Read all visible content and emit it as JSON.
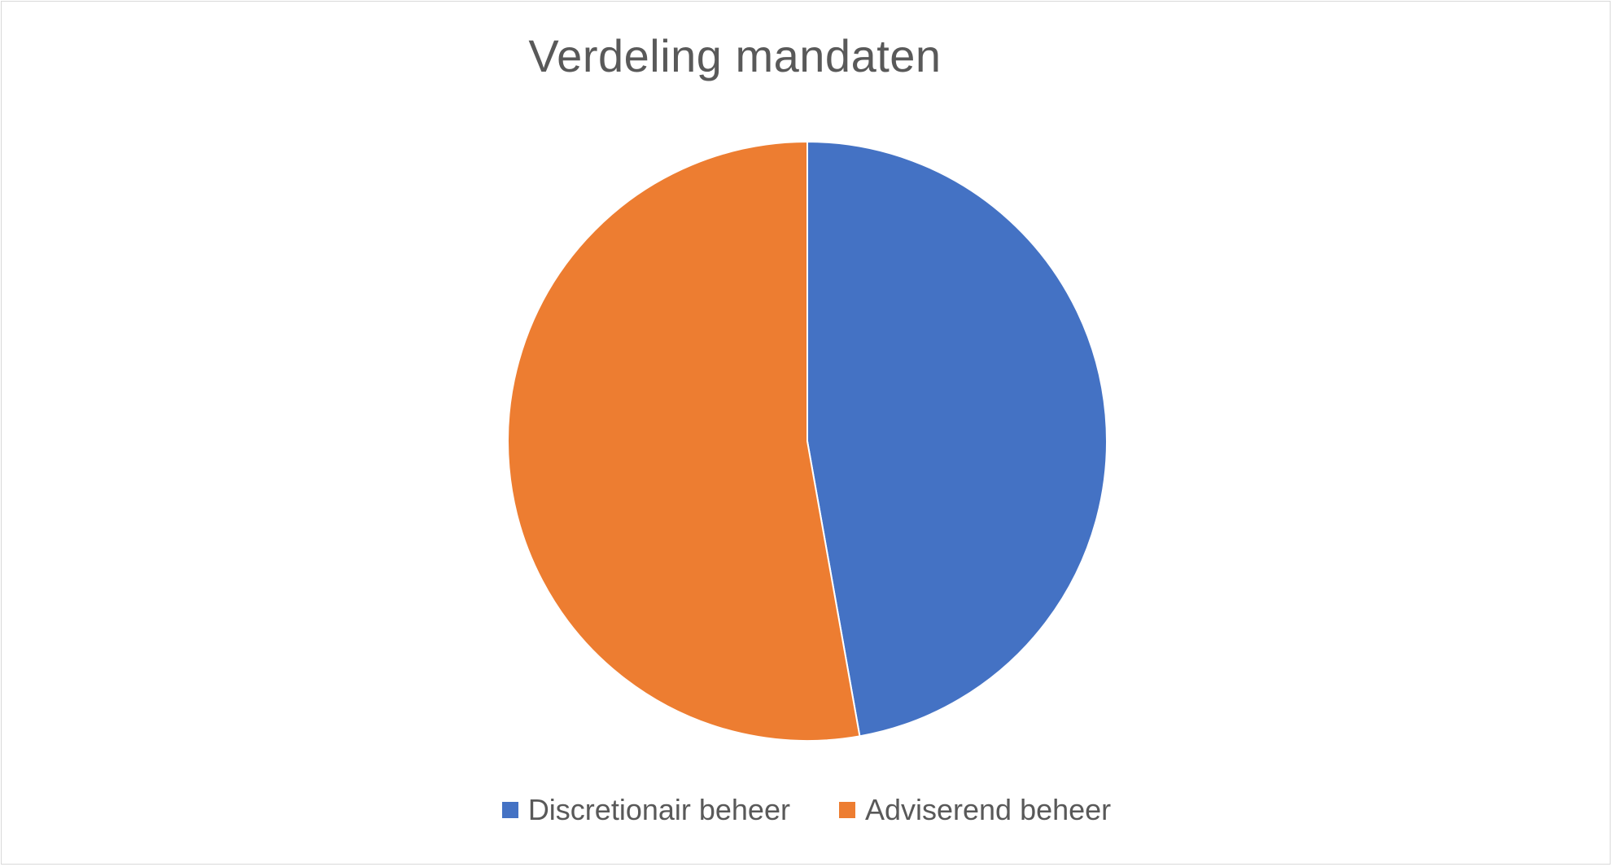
{
  "chart_data": {
    "type": "pie",
    "title": "Verdeling mandaten",
    "categories": [
      "Discretionair beheer",
      "Adviserend beheer"
    ],
    "values": [
      47.2,
      52.8
    ],
    "colors": [
      "#4472c4",
      "#ed7d31"
    ],
    "start_angle_deg": 0,
    "direction": "clockwise",
    "legend_position": "bottom"
  }
}
